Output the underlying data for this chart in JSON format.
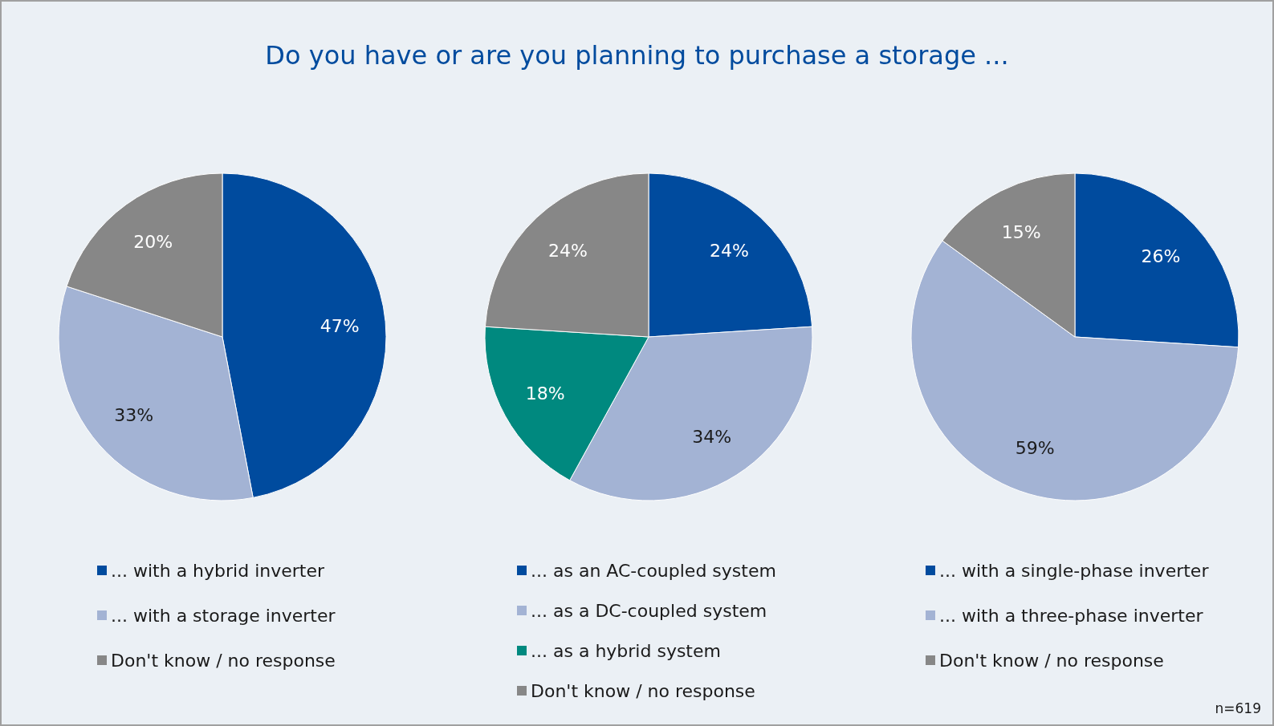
{
  "chart_data": [
    {
      "type": "pie",
      "title": "Do you have or are you planning to purchase a storage ...",
      "categories": [
        "... with a hybrid inverter",
        "... with a storage inverter",
        "Don't know / no response"
      ],
      "values": [
        47,
        33,
        20
      ],
      "value_labels": [
        "47%",
        "33%",
        "20%"
      ],
      "colors": [
        "#004b9e",
        "#a3b3d4",
        "#878787"
      ],
      "legend": "bottom"
    },
    {
      "type": "pie",
      "categories": [
        "... as an AC-coupled system",
        "... as a DC-coupled system",
        "... as a hybrid system",
        "Don't know / no response"
      ],
      "values": [
        24,
        34,
        18,
        24
      ],
      "value_labels": [
        "24%",
        "34%",
        "18%",
        "24%"
      ],
      "colors": [
        "#004b9e",
        "#a3b3d4",
        "#00897f",
        "#878787"
      ],
      "legend": "bottom"
    },
    {
      "type": "pie",
      "categories": [
        "... with a single-phase inverter",
        "... with a three-phase inverter",
        "Don't know / no response"
      ],
      "values": [
        26,
        59,
        15
      ],
      "value_labels": [
        "26%",
        "59%",
        "15%"
      ],
      "colors": [
        "#004b9e",
        "#a3b3d4",
        "#878787"
      ],
      "legend": "bottom",
      "annotations": [
        "n=619"
      ]
    }
  ]
}
